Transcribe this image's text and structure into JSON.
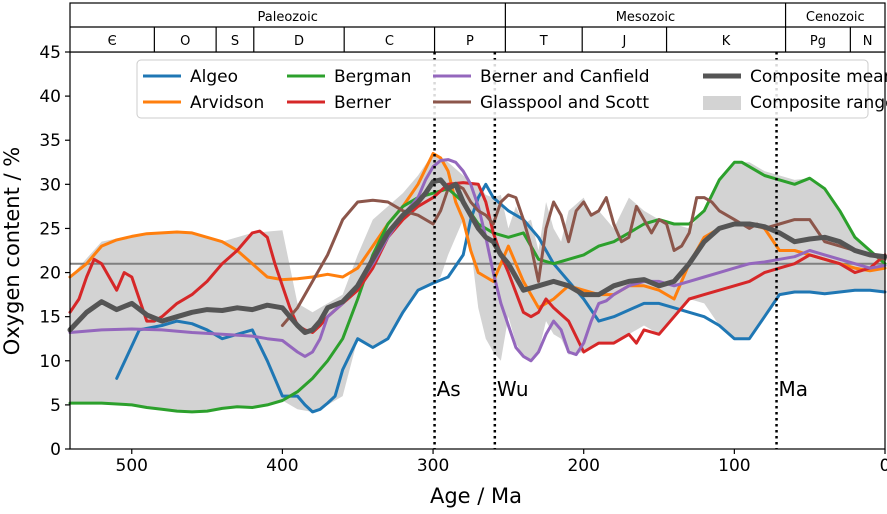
{
  "chart_data": {
    "type": "line",
    "xlabel": "Age / Ma",
    "ylabel": "Oxygen content / %",
    "xlim": [
      541,
      0
    ],
    "ylim": [
      0,
      45
    ],
    "xticks": [
      500,
      400,
      300,
      200,
      100,
      0
    ],
    "yticks": [
      0,
      5,
      10,
      15,
      20,
      25,
      30,
      35,
      40,
      45
    ],
    "reference_line": {
      "y": 21,
      "color": "#808080"
    },
    "eras": [
      {
        "label": "Paleozoic",
        "start": 541,
        "end": 252
      },
      {
        "label": "Mesozoic",
        "start": 252,
        "end": 66
      },
      {
        "label": "Cenozoic",
        "start": 66,
        "end": 0
      }
    ],
    "periods": [
      {
        "label": "Є",
        "start": 541,
        "end": 485
      },
      {
        "label": "O",
        "start": 485,
        "end": 444
      },
      {
        "label": "S",
        "start": 444,
        "end": 419
      },
      {
        "label": "D",
        "start": 419,
        "end": 359
      },
      {
        "label": "C",
        "start": 359,
        "end": 299
      },
      {
        "label": "P",
        "start": 299,
        "end": 252
      },
      {
        "label": "T",
        "start": 252,
        "end": 201
      },
      {
        "label": "J",
        "start": 201,
        "end": 145
      },
      {
        "label": "K",
        "start": 145,
        "end": 66
      },
      {
        "label": "Pg",
        "start": 66,
        "end": 23
      },
      {
        "label": "N",
        "start": 23,
        "end": 0
      }
    ],
    "events": [
      {
        "label": "As",
        "x": 299,
        "label_y": 6
      },
      {
        "label": "Wu",
        "x": 259,
        "label_y": 6
      },
      {
        "label": "Ma",
        "x": 72,
        "label_y": 6
      }
    ],
    "composite_range": {
      "name": "Composite range",
      "color": "#d3d3d3",
      "x": [
        541,
        520,
        500,
        480,
        460,
        440,
        420,
        400,
        390,
        380,
        370,
        360,
        350,
        340,
        330,
        320,
        310,
        300,
        295,
        290,
        280,
        275,
        270,
        265,
        260,
        255,
        250,
        245,
        240,
        235,
        230,
        225,
        220,
        215,
        210,
        200,
        195,
        190,
        180,
        170,
        160,
        150,
        140,
        130,
        120,
        110,
        100,
        90,
        80,
        70,
        60,
        50,
        40,
        30,
        20,
        10,
        0
      ],
      "upper": [
        19.5,
        23.5,
        24.2,
        24.6,
        24.5,
        23.5,
        24.5,
        24.8,
        16.5,
        15.5,
        16.5,
        17.5,
        22,
        26,
        27.5,
        29,
        31,
        33.5,
        33,
        32.5,
        31,
        30.2,
        30,
        28.8,
        28.5,
        28.8,
        25,
        27.5,
        25.5,
        26,
        22.5,
        28,
        25,
        23.5,
        27,
        28.5,
        26.5,
        27,
        25,
        28.5,
        27,
        26,
        25.5,
        25,
        27,
        30.5,
        32.5,
        32.5,
        31.5,
        31,
        30.5,
        30.7,
        29.5,
        27,
        24,
        22.5,
        21
      ],
      "lower": [
        5.2,
        5.2,
        5,
        4.5,
        4.2,
        4.5,
        4.8,
        5.5,
        4.5,
        4.2,
        5,
        6,
        12.5,
        11.5,
        12.5,
        15.5,
        18,
        18.8,
        19.5,
        22,
        26,
        23,
        16,
        12.5,
        11,
        10,
        15,
        12,
        10.5,
        10,
        11,
        14.5,
        13,
        12.5,
        10.7,
        11,
        11.5,
        12,
        12,
        13,
        14,
        13,
        15,
        17,
        16.5,
        14,
        12.5,
        12.5,
        15,
        17.5,
        17.8,
        17.8,
        17.6,
        17.8,
        18,
        18,
        17.8
      ]
    },
    "series": [
      {
        "name": "Algeo",
        "color": "#1f77b4",
        "x": [
          510,
          495,
          480,
          470,
          460,
          450,
          440,
          430,
          420,
          410,
          400,
          390,
          385,
          380,
          375,
          370,
          365,
          360,
          350,
          340,
          330,
          320,
          310,
          300,
          290,
          280,
          275,
          270,
          265,
          260,
          250,
          240,
          230,
          220,
          200,
          190,
          180,
          160,
          150,
          140,
          130,
          120,
          110,
          100,
          90,
          80,
          70,
          60,
          50,
          40,
          30,
          20,
          10,
          0
        ],
        "y": [
          8,
          13.5,
          14,
          14.5,
          14.2,
          13.5,
          12.5,
          13,
          13.5,
          10,
          6,
          6,
          5,
          4.2,
          4.5,
          5.2,
          6,
          9,
          12.5,
          11.5,
          12.5,
          15.5,
          18,
          18.8,
          19.5,
          22,
          26,
          28.5,
          30,
          28.5,
          27,
          26,
          24,
          21,
          17,
          14.5,
          15,
          16.5,
          16.5,
          16,
          15.5,
          15,
          14,
          12.5,
          12.5,
          15,
          17.5,
          17.8,
          17.8,
          17.6,
          17.8,
          18,
          18,
          17.8
        ]
      },
      {
        "name": "Arvidson",
        "color": "#ff7f0e",
        "x": [
          541,
          530,
          520,
          510,
          500,
          490,
          480,
          470,
          460,
          450,
          440,
          430,
          420,
          410,
          400,
          390,
          380,
          370,
          360,
          350,
          340,
          330,
          320,
          310,
          300,
          295,
          290,
          285,
          280,
          275,
          270,
          265,
          260,
          250,
          240,
          230,
          220,
          210,
          200,
          190,
          180,
          170,
          160,
          150,
          140,
          130,
          120,
          110,
          100,
          90,
          80,
          70,
          60,
          50,
          40,
          30,
          20,
          10,
          0
        ],
        "y": [
          19.5,
          21,
          23,
          23.7,
          24.1,
          24.4,
          24.5,
          24.6,
          24.5,
          24,
          23.5,
          22.5,
          21,
          19.5,
          19.2,
          19.3,
          19.5,
          19.8,
          19.5,
          20.5,
          23,
          25.5,
          27.5,
          30,
          33.5,
          33,
          31.5,
          28,
          26,
          22.5,
          20,
          19.5,
          19,
          23,
          19,
          16,
          17,
          18.5,
          18,
          17.5,
          17.5,
          18.5,
          18.5,
          18,
          17,
          21,
          24,
          25,
          25.5,
          25.5,
          25,
          22.5,
          22.5,
          22,
          21.5,
          21,
          20.5,
          20.2,
          20.5
        ]
      },
      {
        "name": "Bergman",
        "color": "#2ca02c",
        "x": [
          541,
          520,
          500,
          490,
          480,
          470,
          460,
          450,
          440,
          430,
          420,
          410,
          400,
          390,
          380,
          370,
          360,
          350,
          340,
          330,
          320,
          310,
          300,
          290,
          280,
          270,
          260,
          250,
          240,
          230,
          220,
          210,
          200,
          190,
          180,
          170,
          160,
          150,
          140,
          130,
          120,
          110,
          100,
          95,
          90,
          80,
          70,
          60,
          50,
          40,
          30,
          20,
          10,
          0
        ],
        "y": [
          5.2,
          5.2,
          5,
          4.7,
          4.5,
          4.3,
          4.2,
          4.3,
          4.6,
          4.8,
          4.7,
          5,
          5.5,
          6.5,
          8,
          10,
          12.5,
          17,
          22,
          25.5,
          27.5,
          28.5,
          29,
          29.5,
          28,
          25.5,
          24.5,
          24,
          24.5,
          21.5,
          21,
          21.5,
          22,
          23,
          23.5,
          24.5,
          25.5,
          26,
          25.5,
          25.5,
          27,
          30.5,
          32.5,
          32.5,
          32,
          31,
          30.5,
          30,
          30.7,
          29.5,
          27,
          24,
          22.5,
          21
        ]
      },
      {
        "name": "Berner",
        "color": "#d62728",
        "x": [
          541,
          535,
          530,
          525,
          520,
          510,
          505,
          500,
          495,
          490,
          485,
          480,
          470,
          460,
          450,
          440,
          430,
          420,
          415,
          410,
          405,
          400,
          395,
          390,
          385,
          380,
          375,
          370,
          360,
          350,
          340,
          330,
          320,
          310,
          300,
          290,
          280,
          270,
          265,
          260,
          255,
          250,
          240,
          235,
          230,
          225,
          220,
          210,
          200,
          195,
          190,
          180,
          170,
          165,
          160,
          150,
          140,
          130,
          120,
          110,
          100,
          90,
          80,
          70,
          60,
          50,
          40,
          30,
          20,
          10,
          0
        ],
        "y": [
          15.5,
          17,
          19.5,
          21.5,
          21,
          18,
          20,
          19.5,
          17,
          14.5,
          14.5,
          15,
          16.5,
          17.5,
          19,
          21,
          22.5,
          24.5,
          24.7,
          24,
          21,
          18.5,
          16,
          14,
          13.5,
          13.2,
          14,
          15,
          16.5,
          18,
          20.5,
          24,
          26,
          27.5,
          28.5,
          30,
          30.2,
          30,
          28,
          24.5,
          22,
          20,
          15.5,
          15,
          15.5,
          17,
          16,
          14.5,
          11,
          11.5,
          12,
          12,
          13,
          12,
          13.5,
          13,
          15,
          17,
          17.5,
          18,
          18.5,
          19,
          20,
          20.5,
          21,
          22,
          21.5,
          21,
          20,
          20.5,
          22
        ]
      },
      {
        "name": "Berner and Canfield",
        "color": "#9467bd",
        "x": [
          541,
          520,
          500,
          480,
          460,
          440,
          420,
          410,
          400,
          390,
          385,
          380,
          375,
          370,
          360,
          350,
          340,
          330,
          320,
          310,
          305,
          300,
          295,
          290,
          285,
          280,
          275,
          270,
          265,
          260,
          255,
          250,
          245,
          240,
          235,
          230,
          225,
          220,
          215,
          210,
          205,
          200,
          195,
          190,
          185,
          180,
          170,
          160,
          150,
          140,
          130,
          120,
          110,
          100,
          90,
          80,
          70,
          60,
          50,
          40,
          30,
          20,
          10,
          0
        ],
        "y": [
          13.2,
          13.5,
          13.6,
          13.5,
          13.2,
          13,
          12.8,
          12.5,
          12.3,
          11,
          10.5,
          11,
          12.5,
          15,
          16.5,
          18.5,
          21,
          24,
          26.5,
          28.5,
          30.5,
          32,
          32.7,
          32.8,
          32.5,
          31.5,
          30,
          27.5,
          24,
          20,
          16.5,
          14,
          11.5,
          10.5,
          10,
          11,
          13,
          14.5,
          13.5,
          11,
          10.7,
          12,
          14.5,
          16.5,
          16.8,
          17.5,
          18.5,
          19,
          19,
          18.5,
          19,
          19.5,
          20,
          20.5,
          21,
          21.2,
          21.5,
          21.8,
          22.5,
          22,
          21.5,
          21,
          20.5,
          20.8
        ]
      },
      {
        "name": "Glasspool and Scott",
        "color": "#8c564b",
        "x": [
          400,
          390,
          380,
          370,
          360,
          350,
          340,
          330,
          320,
          310,
          300,
          295,
          290,
          285,
          280,
          275,
          270,
          265,
          260,
          255,
          250,
          245,
          240,
          235,
          230,
          225,
          220,
          215,
          210,
          205,
          200,
          195,
          190,
          185,
          180,
          175,
          170,
          165,
          160,
          155,
          150,
          145,
          140,
          135,
          130,
          125,
          120,
          115,
          110,
          105,
          100,
          95,
          90,
          85,
          80,
          70,
          60,
          50,
          40,
          30,
          20,
          10,
          0
        ],
        "y": [
          14,
          16,
          19,
          22,
          26,
          28,
          28.2,
          28,
          27,
          26.5,
          25.5,
          27,
          29.5,
          30,
          29.5,
          28,
          27,
          26.5,
          25.5,
          28,
          28.8,
          28.5,
          26,
          23,
          19,
          25,
          28,
          26.5,
          23.5,
          27,
          28,
          26.5,
          27,
          28.5,
          25.5,
          23.5,
          24,
          27.5,
          26,
          24.5,
          26,
          25.5,
          22.5,
          23,
          24.5,
          28.5,
          28.5,
          28,
          27,
          26.5,
          26,
          25.5,
          25,
          25.5,
          25,
          25.5,
          26,
          26,
          23.5,
          23,
          22.5,
          22,
          21.5
        ]
      },
      {
        "name": "Composite mean",
        "color": "#555555",
        "x": [
          541,
          530,
          520,
          510,
          500,
          490,
          480,
          470,
          460,
          450,
          440,
          430,
          420,
          410,
          400,
          395,
          390,
          385,
          380,
          375,
          370,
          360,
          350,
          340,
          330,
          320,
          310,
          305,
          300,
          295,
          290,
          285,
          280,
          275,
          270,
          265,
          260,
          255,
          250,
          245,
          240,
          230,
          220,
          210,
          200,
          190,
          180,
          170,
          160,
          150,
          140,
          130,
          120,
          110,
          100,
          90,
          80,
          70,
          60,
          50,
          40,
          30,
          20,
          10,
          0
        ],
        "y": [
          13.5,
          15.5,
          16.7,
          15.8,
          16.5,
          15.2,
          14.5,
          15,
          15.5,
          15.8,
          15.7,
          16,
          15.8,
          16.3,
          16,
          15,
          14,
          13.2,
          13.5,
          14.5,
          16,
          16.7,
          18.5,
          21.5,
          24.5,
          26.5,
          28,
          29,
          30.3,
          30.5,
          29.5,
          30,
          28,
          26.5,
          25,
          24,
          23.5,
          22,
          21,
          19.5,
          18,
          18.5,
          19,
          18.5,
          17.5,
          17.5,
          18.5,
          19,
          19.2,
          18.5,
          19,
          21,
          23.5,
          25,
          25.5,
          25.5,
          25.2,
          24.5,
          23.5,
          23.8,
          24,
          23.5,
          22.5,
          22,
          21.8
        ]
      }
    ],
    "legend": {
      "location": "top-center",
      "entries": [
        "Algeo",
        "Arvidson",
        "Bergman",
        "Berner",
        "Berner and Canfield",
        "Glasspool and Scott",
        "Composite mean",
        "Composite range"
      ]
    }
  }
}
